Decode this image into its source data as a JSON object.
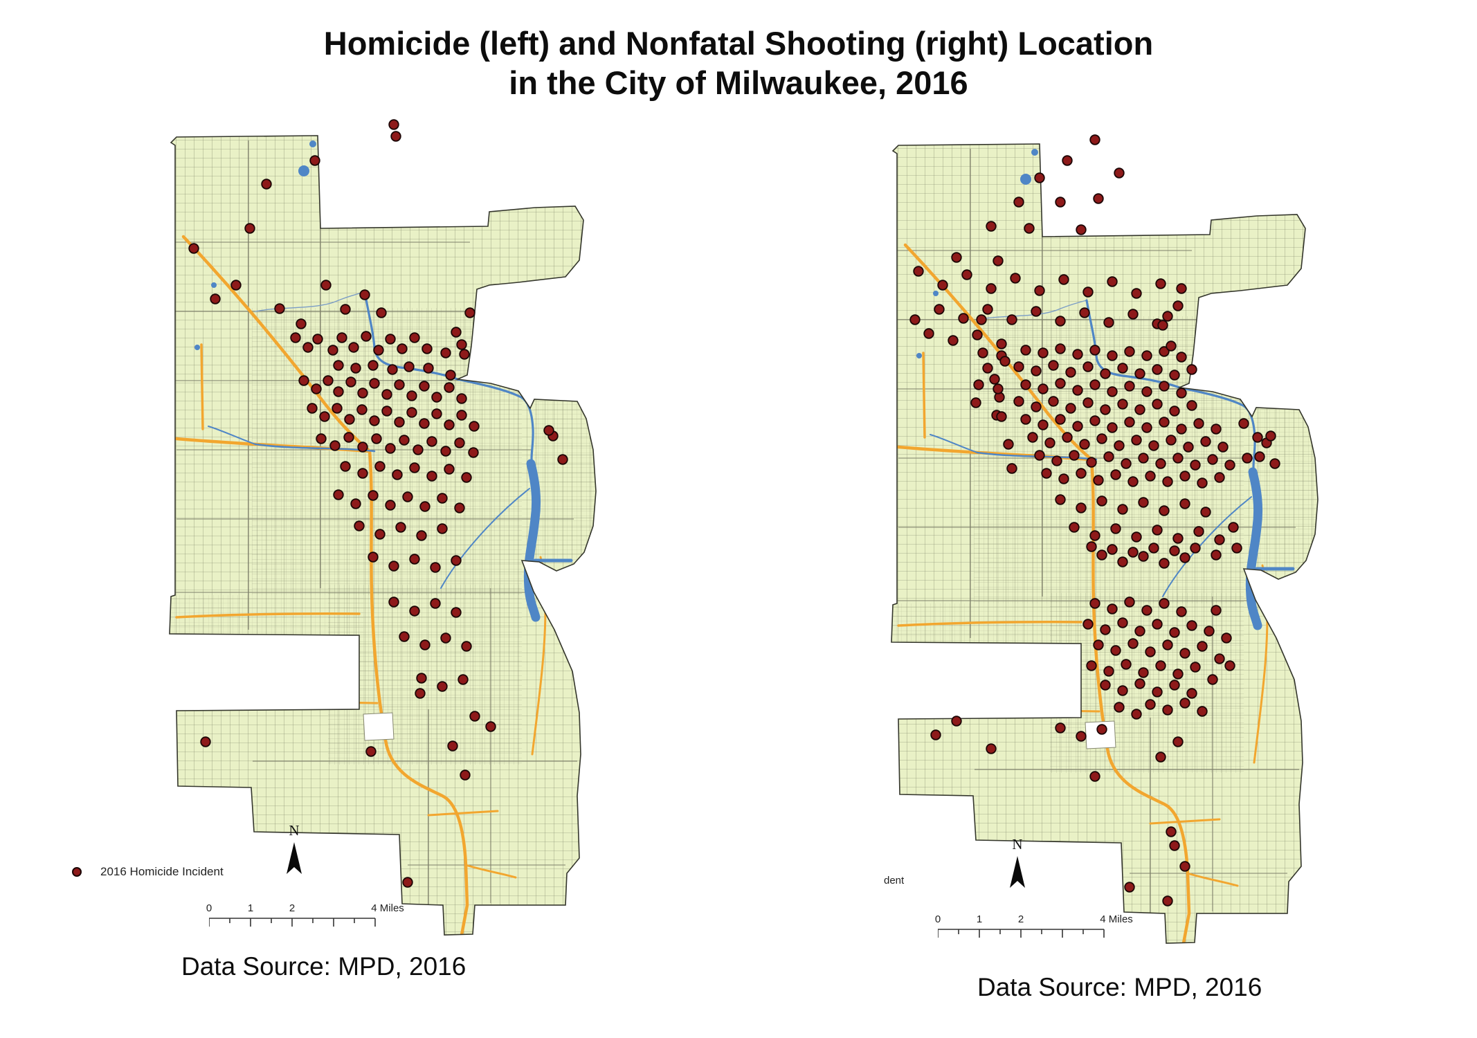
{
  "title": {
    "line1": "Homicide (left) and Nonfatal Shooting (right) Location",
    "line2": "in the City of Milwaukee, 2016"
  },
  "colors": {
    "map_fill": "#e9f1c6",
    "boundary": "#33352b",
    "road_grid": "#5a5e49",
    "major_road": "#7d7f6a",
    "highway": "#f2a62f",
    "water": "#4f86c6",
    "incident_dot": "#8e1a1a",
    "dot_outline": "#1c0606"
  },
  "maps": [
    {
      "id": "homicide",
      "position": "left",
      "legend": {
        "symbol": "incident-dot",
        "label": "2016 Homicide Incident"
      },
      "north_label": "N",
      "scale_bar": {
        "tick_labels": [
          "0",
          "1",
          "2",
          "4 Miles"
        ]
      },
      "caption": "Data Source: MPD, 2016",
      "points": [
        [
          380,
          30
        ],
        [
          383,
          47
        ],
        [
          266,
          82
        ],
        [
          196,
          116
        ],
        [
          91,
          209
        ],
        [
          172,
          180
        ],
        [
          152,
          262
        ],
        [
          122,
          282
        ],
        [
          215,
          296
        ],
        [
          246,
          318
        ],
        [
          282,
          262
        ],
        [
          310,
          297
        ],
        [
          338,
          276
        ],
        [
          362,
          302
        ],
        [
          238,
          338
        ],
        [
          256,
          352
        ],
        [
          270,
          340
        ],
        [
          292,
          356
        ],
        [
          305,
          338
        ],
        [
          322,
          352
        ],
        [
          340,
          336
        ],
        [
          358,
          356
        ],
        [
          375,
          340
        ],
        [
          392,
          354
        ],
        [
          410,
          338
        ],
        [
          428,
          354
        ],
        [
          300,
          378
        ],
        [
          325,
          382
        ],
        [
          350,
          378
        ],
        [
          378,
          384
        ],
        [
          402,
          380
        ],
        [
          430,
          382
        ],
        [
          455,
          360
        ],
        [
          478,
          348
        ],
        [
          490,
          302
        ],
        [
          470,
          330
        ],
        [
          482,
          362
        ],
        [
          462,
          392
        ],
        [
          610,
          480
        ],
        [
          624,
          514
        ],
        [
          604,
          472
        ],
        [
          250,
          400
        ],
        [
          268,
          412
        ],
        [
          285,
          400
        ],
        [
          300,
          416
        ],
        [
          318,
          402
        ],
        [
          335,
          418
        ],
        [
          352,
          404
        ],
        [
          370,
          420
        ],
        [
          388,
          406
        ],
        [
          406,
          422
        ],
        [
          424,
          408
        ],
        [
          442,
          424
        ],
        [
          460,
          410
        ],
        [
          478,
          426
        ],
        [
          262,
          440
        ],
        [
          280,
          452
        ],
        [
          298,
          440
        ],
        [
          316,
          456
        ],
        [
          334,
          442
        ],
        [
          352,
          458
        ],
        [
          370,
          444
        ],
        [
          388,
          460
        ],
        [
          406,
          446
        ],
        [
          424,
          462
        ],
        [
          442,
          448
        ],
        [
          460,
          464
        ],
        [
          478,
          450
        ],
        [
          496,
          466
        ],
        [
          275,
          484
        ],
        [
          295,
          494
        ],
        [
          315,
          482
        ],
        [
          335,
          496
        ],
        [
          355,
          484
        ],
        [
          375,
          498
        ],
        [
          395,
          486
        ],
        [
          415,
          500
        ],
        [
          435,
          488
        ],
        [
          455,
          502
        ],
        [
          475,
          490
        ],
        [
          495,
          504
        ],
        [
          310,
          524
        ],
        [
          335,
          534
        ],
        [
          360,
          524
        ],
        [
          385,
          536
        ],
        [
          410,
          526
        ],
        [
          435,
          538
        ],
        [
          460,
          528
        ],
        [
          485,
          540
        ],
        [
          300,
          565
        ],
        [
          325,
          578
        ],
        [
          350,
          566
        ],
        [
          375,
          580
        ],
        [
          400,
          568
        ],
        [
          425,
          582
        ],
        [
          450,
          570
        ],
        [
          475,
          584
        ],
        [
          330,
          610
        ],
        [
          360,
          622
        ],
        [
          390,
          612
        ],
        [
          420,
          624
        ],
        [
          450,
          614
        ],
        [
          350,
          655
        ],
        [
          380,
          668
        ],
        [
          410,
          658
        ],
        [
          440,
          670
        ],
        [
          470,
          660
        ],
        [
          380,
          720
        ],
        [
          410,
          733
        ],
        [
          440,
          722
        ],
        [
          470,
          735
        ],
        [
          395,
          770
        ],
        [
          425,
          782
        ],
        [
          455,
          772
        ],
        [
          485,
          784
        ],
        [
          420,
          830
        ],
        [
          450,
          842
        ],
        [
          480,
          832
        ],
        [
          418,
          852
        ],
        [
          108,
          922
        ],
        [
          347,
          936
        ],
        [
          465,
          928
        ],
        [
          497,
          885
        ],
        [
          520,
          900
        ],
        [
          400,
          1125
        ],
        [
          483,
          970
        ]
      ]
    },
    {
      "id": "nonfatal-shooting",
      "position": "right",
      "legend": {
        "symbol": null,
        "label": "dent"
      },
      "north_label": "N",
      "scale_bar": {
        "tick_labels": [
          "0",
          "1",
          "2",
          "4 Miles"
        ]
      },
      "caption": "Data Source: MPD, 2016",
      "points": [
        [
          350,
          40
        ],
        [
          310,
          70
        ],
        [
          270,
          95
        ],
        [
          385,
          88
        ],
        [
          240,
          130
        ],
        [
          300,
          130
        ],
        [
          355,
          125
        ],
        [
          200,
          165
        ],
        [
          255,
          168
        ],
        [
          330,
          170
        ],
        [
          150,
          210
        ],
        [
          210,
          215
        ],
        [
          95,
          230
        ],
        [
          130,
          250
        ],
        [
          165,
          235
        ],
        [
          200,
          255
        ],
        [
          235,
          240
        ],
        [
          270,
          258
        ],
        [
          305,
          242
        ],
        [
          340,
          260
        ],
        [
          375,
          245
        ],
        [
          410,
          262
        ],
        [
          445,
          248
        ],
        [
          125,
          285
        ],
        [
          160,
          298
        ],
        [
          195,
          285
        ],
        [
          230,
          300
        ],
        [
          265,
          288
        ],
        [
          300,
          302
        ],
        [
          335,
          290
        ],
        [
          370,
          304
        ],
        [
          405,
          292
        ],
        [
          440,
          306
        ],
        [
          470,
          280
        ],
        [
          448,
          308
        ],
        [
          475,
          255
        ],
        [
          455,
          295
        ],
        [
          90,
          300
        ],
        [
          110,
          320
        ],
        [
          145,
          330
        ],
        [
          180,
          322
        ],
        [
          215,
          335
        ],
        [
          250,
          344
        ],
        [
          275,
          348
        ],
        [
          300,
          342
        ],
        [
          325,
          350
        ],
        [
          350,
          344
        ],
        [
          375,
          352
        ],
        [
          400,
          346
        ],
        [
          425,
          352
        ],
        [
          450,
          346
        ],
        [
          475,
          354
        ],
        [
          460,
          338
        ],
        [
          215,
          352
        ],
        [
          240,
          368
        ],
        [
          265,
          374
        ],
        [
          290,
          366
        ],
        [
          315,
          376
        ],
        [
          340,
          368
        ],
        [
          365,
          378
        ],
        [
          390,
          370
        ],
        [
          415,
          378
        ],
        [
          440,
          372
        ],
        [
          465,
          380
        ],
        [
          490,
          372
        ],
        [
          205,
          386
        ],
        [
          250,
          394
        ],
        [
          275,
          400
        ],
        [
          300,
          392
        ],
        [
          325,
          402
        ],
        [
          350,
          394
        ],
        [
          375,
          404
        ],
        [
          400,
          396
        ],
        [
          425,
          404
        ],
        [
          450,
          396
        ],
        [
          475,
          406
        ],
        [
          212,
          412
        ],
        [
          195,
          370
        ],
        [
          240,
          418
        ],
        [
          265,
          426
        ],
        [
          290,
          418
        ],
        [
          315,
          428
        ],
        [
          340,
          420
        ],
        [
          365,
          430
        ],
        [
          390,
          422
        ],
        [
          415,
          430
        ],
        [
          440,
          422
        ],
        [
          465,
          432
        ],
        [
          490,
          424
        ],
        [
          208,
          438
        ],
        [
          250,
          444
        ],
        [
          275,
          452
        ],
        [
          300,
          444
        ],
        [
          325,
          454
        ],
        [
          350,
          446
        ],
        [
          375,
          456
        ],
        [
          400,
          448
        ],
        [
          425,
          456
        ],
        [
          450,
          448
        ],
        [
          475,
          458
        ],
        [
          500,
          450
        ],
        [
          525,
          458
        ],
        [
          260,
          470
        ],
        [
          285,
          478
        ],
        [
          310,
          470
        ],
        [
          335,
          480
        ],
        [
          360,
          472
        ],
        [
          385,
          482
        ],
        [
          410,
          474
        ],
        [
          435,
          482
        ],
        [
          460,
          474
        ],
        [
          485,
          484
        ],
        [
          510,
          476
        ],
        [
          535,
          484
        ],
        [
          270,
          496
        ],
        [
          295,
          504
        ],
        [
          320,
          496
        ],
        [
          345,
          506
        ],
        [
          370,
          498
        ],
        [
          395,
          508
        ],
        [
          420,
          500
        ],
        [
          445,
          508
        ],
        [
          470,
          500
        ],
        [
          495,
          510
        ],
        [
          520,
          502
        ],
        [
          545,
          510
        ],
        [
          280,
          522
        ],
        [
          305,
          530
        ],
        [
          330,
          522
        ],
        [
          355,
          532
        ],
        [
          380,
          524
        ],
        [
          405,
          534
        ],
        [
          430,
          526
        ],
        [
          455,
          534
        ],
        [
          480,
          526
        ],
        [
          505,
          536
        ],
        [
          530,
          528
        ],
        [
          188,
          348
        ],
        [
          182,
          394
        ],
        [
          178,
          420
        ],
        [
          186,
          300
        ],
        [
          565,
          450
        ],
        [
          585,
          470
        ],
        [
          570,
          500
        ],
        [
          225,
          480
        ],
        [
          230,
          515
        ],
        [
          220,
          360
        ],
        [
          215,
          440
        ],
        [
          210,
          400
        ],
        [
          300,
          560
        ],
        [
          330,
          572
        ],
        [
          360,
          562
        ],
        [
          390,
          574
        ],
        [
          420,
          564
        ],
        [
          450,
          576
        ],
        [
          480,
          566
        ],
        [
          510,
          578
        ],
        [
          320,
          600
        ],
        [
          350,
          612
        ],
        [
          380,
          602
        ],
        [
          410,
          614
        ],
        [
          440,
          604
        ],
        [
          470,
          616
        ],
        [
          500,
          606
        ],
        [
          530,
          618
        ],
        [
          360,
          640
        ],
        [
          390,
          650
        ],
        [
          420,
          642
        ],
        [
          450,
          652
        ],
        [
          480,
          644
        ],
        [
          345,
          628
        ],
        [
          375,
          632
        ],
        [
          405,
          636
        ],
        [
          435,
          630
        ],
        [
          465,
          634
        ],
        [
          495,
          630
        ],
        [
          525,
          640
        ],
        [
          550,
          600
        ],
        [
          555,
          630
        ],
        [
          350,
          710
        ],
        [
          375,
          718
        ],
        [
          400,
          708
        ],
        [
          425,
          720
        ],
        [
          450,
          710
        ],
        [
          475,
          722
        ],
        [
          340,
          740
        ],
        [
          365,
          748
        ],
        [
          390,
          738
        ],
        [
          415,
          750
        ],
        [
          440,
          740
        ],
        [
          465,
          752
        ],
        [
          490,
          742
        ],
        [
          355,
          770
        ],
        [
          380,
          778
        ],
        [
          405,
          768
        ],
        [
          430,
          780
        ],
        [
          455,
          770
        ],
        [
          480,
          782
        ],
        [
          505,
          772
        ],
        [
          345,
          800
        ],
        [
          370,
          808
        ],
        [
          395,
          798
        ],
        [
          420,
          810
        ],
        [
          445,
          800
        ],
        [
          470,
          812
        ],
        [
          495,
          802
        ],
        [
          365,
          828
        ],
        [
          390,
          836
        ],
        [
          415,
          826
        ],
        [
          440,
          838
        ],
        [
          465,
          828
        ],
        [
          490,
          840
        ],
        [
          430,
          856
        ],
        [
          455,
          864
        ],
        [
          480,
          854
        ],
        [
          505,
          866
        ],
        [
          520,
          820
        ],
        [
          530,
          790
        ],
        [
          515,
          750
        ],
        [
          525,
          720
        ],
        [
          540,
          760
        ],
        [
          545,
          800
        ],
        [
          410,
          870
        ],
        [
          385,
          860
        ],
        [
          300,
          890
        ],
        [
          330,
          902
        ],
        [
          360,
          892
        ],
        [
          150,
          880
        ],
        [
          120,
          900
        ],
        [
          470,
          910
        ],
        [
          445,
          932
        ],
        [
          350,
          960
        ],
        [
          465,
          1060
        ],
        [
          480,
          1090
        ],
        [
          455,
          1140
        ],
        [
          400,
          1120
        ],
        [
          460,
          1040
        ],
        [
          200,
          920
        ],
        [
          598,
          478
        ],
        [
          610,
          508
        ],
        [
          588,
          498
        ],
        [
          604,
          468
        ]
      ]
    }
  ]
}
